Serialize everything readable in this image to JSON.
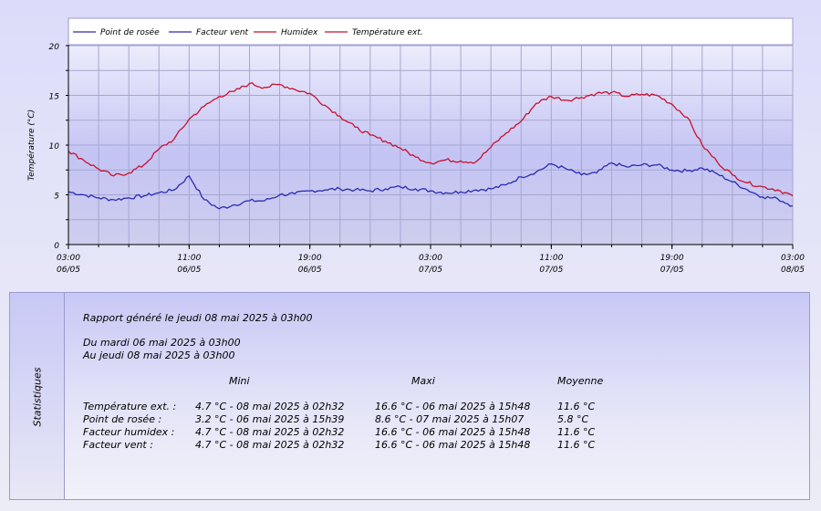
{
  "chart_data": {
    "type": "line",
    "ylabel": "Température (°C)",
    "ylim": [
      0,
      20
    ],
    "yticks": [
      0,
      5,
      10,
      15,
      20
    ],
    "x_range": [
      "2025-05-06 03:00",
      "2025-05-08 03:00"
    ],
    "xticks": [
      {
        "time": "03:00",
        "date": "06/05",
        "h": 0
      },
      {
        "time": "11:00",
        "date": "06/05",
        "h": 8
      },
      {
        "time": "19:00",
        "date": "06/05",
        "h": 16
      },
      {
        "time": "03:00",
        "date": "07/05",
        "h": 24
      },
      {
        "time": "11:00",
        "date": "07/05",
        "h": 32
      },
      {
        "time": "19:00",
        "date": "07/05",
        "h": 40
      },
      {
        "time": "03:00",
        "date": "08/05",
        "h": 48
      }
    ],
    "grid": true,
    "legend_position": "top",
    "series": [
      {
        "name": "Point de rosée",
        "color": "#2a2ab4",
        "visible": true,
        "h": [
          0,
          1,
          2,
          3,
          4,
          5,
          6,
          7,
          8,
          9,
          10,
          11,
          12,
          13,
          14,
          15,
          16,
          17,
          18,
          19,
          20,
          21,
          22,
          23,
          24,
          25,
          26,
          27,
          28,
          29,
          30,
          31,
          32,
          33,
          34,
          35,
          36,
          37,
          38,
          39,
          40,
          41,
          42,
          43,
          44,
          45,
          46,
          47,
          48
        ],
        "values": [
          5.3,
          5.0,
          4.7,
          4.5,
          4.7,
          4.9,
          5.2,
          5.5,
          6.9,
          4.5,
          3.6,
          4.0,
          4.4,
          4.4,
          5.0,
          5.1,
          5.4,
          5.5,
          5.6,
          5.5,
          5.4,
          5.6,
          5.8,
          5.6,
          5.4,
          5.2,
          5.3,
          5.5,
          5.6,
          6.0,
          6.8,
          7.3,
          8.1,
          7.6,
          7.0,
          7.2,
          8.2,
          7.8,
          8.0,
          8.0,
          7.5,
          7.4,
          7.7,
          7.1,
          6.3,
          5.5,
          4.8,
          4.6,
          3.9
        ]
      },
      {
        "name": "Facteur vent",
        "color": "#2a2ab4",
        "visible": false,
        "values": []
      },
      {
        "name": "Humidex",
        "color": "#c8102e",
        "visible": false,
        "values": []
      },
      {
        "name": "Température ext.",
        "color": "#c8102e",
        "visible": true,
        "h": [
          0,
          1,
          2,
          3,
          4,
          5,
          6,
          7,
          8,
          9,
          10,
          11,
          12,
          13,
          14,
          15,
          16,
          17,
          18,
          19,
          20,
          21,
          22,
          23,
          24,
          25,
          26,
          27,
          28,
          29,
          30,
          31,
          32,
          33,
          34,
          35,
          36,
          37,
          38,
          39,
          40,
          41,
          42,
          43,
          44,
          45,
          46,
          47,
          48
        ],
        "values": [
          9.4,
          8.5,
          7.6,
          6.9,
          7.2,
          8.0,
          9.6,
          10.6,
          12.6,
          13.9,
          14.9,
          15.4,
          16.2,
          15.8,
          16.1,
          15.6,
          15.2,
          14.0,
          12.9,
          11.8,
          11.0,
          10.4,
          9.7,
          8.8,
          8.2,
          8.5,
          8.4,
          8.3,
          9.8,
          11.2,
          12.4,
          14.2,
          14.9,
          14.5,
          14.8,
          15.2,
          15.3,
          14.9,
          15.1,
          15.0,
          14.1,
          12.8,
          10.0,
          8.3,
          7.0,
          6.2,
          5.8,
          5.5,
          4.9
        ]
      }
    ]
  },
  "stats": {
    "side_label": "Statistiques",
    "report": "Rapport généré le jeudi 08 mai 2025 à 03h00",
    "from": "Du mardi 06 mai 2025 à 03h00",
    "to": "Au jeudi 08 mai 2025 à 03h00",
    "headers": {
      "min": "Mini",
      "max": "Maxi",
      "avg": "Moyenne"
    },
    "rows": [
      {
        "label": "Température ext. :",
        "min": "4.7 °C - 08 mai 2025 à 02h32",
        "max": "16.6 °C - 06 mai 2025 à 15h48",
        "avg": "11.6 °C"
      },
      {
        "label": "Point de rosée :",
        "min": "3.2 °C - 06 mai 2025 à 15h39",
        "max": "8.6 °C - 07 mai 2025 à 15h07",
        "avg": "5.8 °C"
      },
      {
        "label": "Facteur humidex :",
        "min": "4.7 °C - 08 mai 2025 à 02h32",
        "max": "16.6 °C - 06 mai 2025 à 15h48",
        "avg": "11.6 °C"
      },
      {
        "label": "Facteur vent :",
        "min": "4.7 °C - 08 mai 2025 à 02h32",
        "max": "16.6 °C - 06 mai 2025 à 15h48",
        "avg": "11.6 °C"
      }
    ]
  }
}
